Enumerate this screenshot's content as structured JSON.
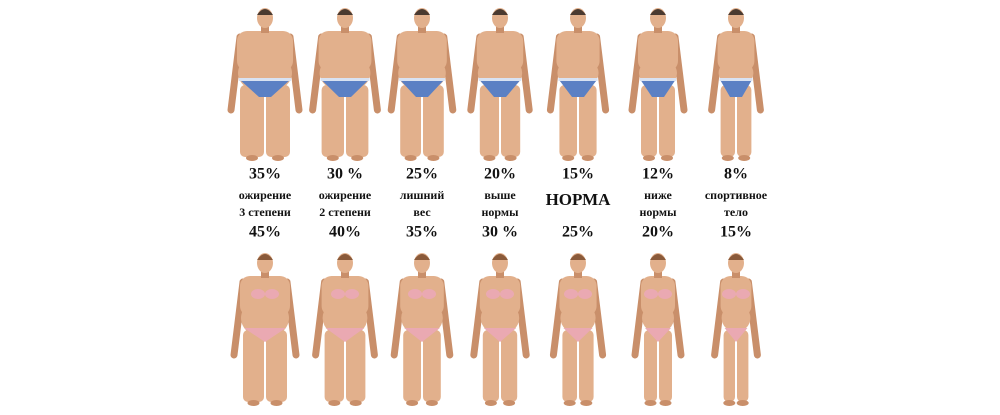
{
  "columns": [
    {
      "male": "35%",
      "label": [
        "ожирение",
        "3 степени"
      ],
      "female": "45%"
    },
    {
      "male": "30 %",
      "label": [
        "ожирение",
        "2 степени"
      ],
      "female": "40%"
    },
    {
      "male": "25%",
      "label": [
        "лишний",
        "вес"
      ],
      "female": "35%"
    },
    {
      "male": "20%",
      "label": [
        "выше",
        "нормы"
      ],
      "female": "30 %"
    },
    {
      "male": "15%",
      "label": [
        "НОРМА"
      ],
      "female": "25%"
    },
    {
      "male": "12%",
      "label": [
        "ниже",
        "нормы"
      ],
      "female": "20%"
    },
    {
      "male": "8%",
      "label": [
        "спортивное",
        "тело"
      ],
      "female": "15%"
    }
  ]
}
